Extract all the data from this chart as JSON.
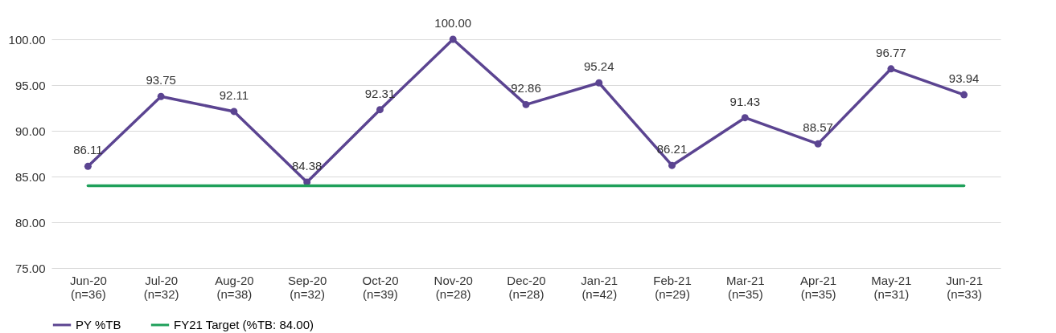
{
  "chart_data": {
    "type": "line",
    "categories": [
      "Jun-20\n(n=36)",
      "Jul-20\n(n=32)",
      "Aug-20\n(n=38)",
      "Sep-20\n(n=32)",
      "Oct-20\n(n=39)",
      "Nov-20\n(n=28)",
      "Dec-20\n(n=28)",
      "Jan-21\n(n=42)",
      "Feb-21\n(n=29)",
      "Mar-21\n(n=35)",
      "Apr-21\n(n=35)",
      "May-21\n(n=31)",
      "Jun-21\n(n=33)"
    ],
    "series": [
      {
        "name": "PY %TB",
        "color": "#5b4491",
        "marker": "circle",
        "values": [
          86.11,
          93.75,
          92.11,
          84.38,
          92.31,
          100.0,
          92.86,
          95.24,
          86.21,
          91.43,
          88.57,
          96.77,
          93.94
        ],
        "value_labels": [
          "86.11",
          "93.75",
          "92.11",
          "84.38",
          "92.31",
          "100.00",
          "92.86",
          "95.24",
          "86.21",
          "91.43",
          "88.57",
          "96.77",
          "93.94"
        ]
      },
      {
        "name": "FY21 Target (%TB: 84.00)",
        "color": "#1fa05a",
        "marker": "none",
        "values": [
          84,
          84,
          84,
          84,
          84,
          84,
          84,
          84,
          84,
          84,
          84,
          84,
          84
        ]
      }
    ],
    "ylim": [
      75,
      100
    ],
    "yticks": [
      {
        "value": 75,
        "label": "75.00"
      },
      {
        "value": 80,
        "label": "80.00"
      },
      {
        "value": 85,
        "label": "85.00"
      },
      {
        "value": 90,
        "label": "90.00"
      },
      {
        "value": 95,
        "label": "95.00"
      },
      {
        "value": 100,
        "label": "100.00"
      }
    ],
    "grid": "y",
    "legend": "bottom"
  }
}
